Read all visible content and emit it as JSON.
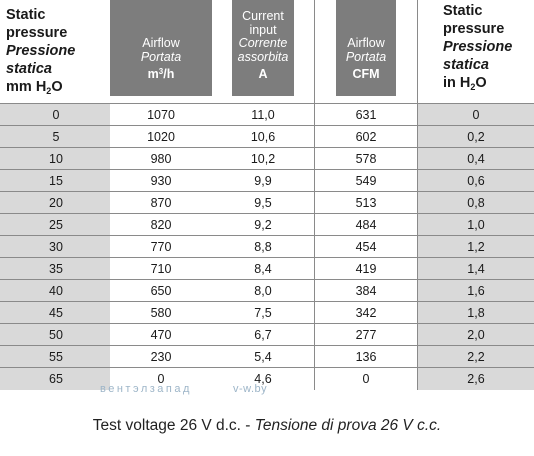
{
  "header": {
    "left": {
      "line1": "Static",
      "line2": "pressure",
      "line3": "Pressione",
      "line4": "statica",
      "unit_pre": "mm H",
      "unit_sub": "2",
      "unit_post": "O"
    },
    "airflow_m3h": {
      "line1": "Airflow",
      "line2": "Portata",
      "unit_pre": "m",
      "unit_sup": "3",
      "unit_post": "/h"
    },
    "current": {
      "line1": "Current",
      "line1b": "input",
      "line2": "Corrente",
      "line2b": "assorbita",
      "unit": "A"
    },
    "airflow_cfm": {
      "line1": "Airflow",
      "line2": "Portata",
      "unit": "CFM"
    },
    "right": {
      "line1": "Static",
      "line2": "pressure",
      "line3": "Pressione",
      "line4": "statica",
      "unit_pre": "in H",
      "unit_sub": "2",
      "unit_post": "O"
    }
  },
  "rows": [
    [
      "0",
      "1070",
      "11,0",
      "631",
      "0"
    ],
    [
      "5",
      "1020",
      "10,6",
      "602",
      "0,2"
    ],
    [
      "10",
      "980",
      "10,2",
      "578",
      "0,4"
    ],
    [
      "15",
      "930",
      "9,9",
      "549",
      "0,6"
    ],
    [
      "20",
      "870",
      "9,5",
      "513",
      "0,8"
    ],
    [
      "25",
      "820",
      "9,2",
      "484",
      "1,0"
    ],
    [
      "30",
      "770",
      "8,8",
      "454",
      "1,2"
    ],
    [
      "35",
      "710",
      "8,4",
      "419",
      "1,4"
    ],
    [
      "40",
      "650",
      "8,0",
      "384",
      "1,6"
    ],
    [
      "45",
      "580",
      "7,5",
      "342",
      "1,8"
    ],
    [
      "50",
      "470",
      "6,7",
      "277",
      "2,0"
    ],
    [
      "55",
      "230",
      "5,4",
      "136",
      "2,2"
    ],
    [
      "65",
      "0",
      "4,6",
      "0",
      "2,6"
    ]
  ],
  "watermark": {
    "left": "вентэлзапад",
    "right": "v-w.by"
  },
  "caption": {
    "normal": "Test voltage 26 V d.c. - ",
    "italic": "Tensione di prova 26 V c.c."
  },
  "colors": {
    "header_grey": "#7d7d7d",
    "row_grey": "#d9d9d9",
    "rule": "#8a8a8a"
  }
}
